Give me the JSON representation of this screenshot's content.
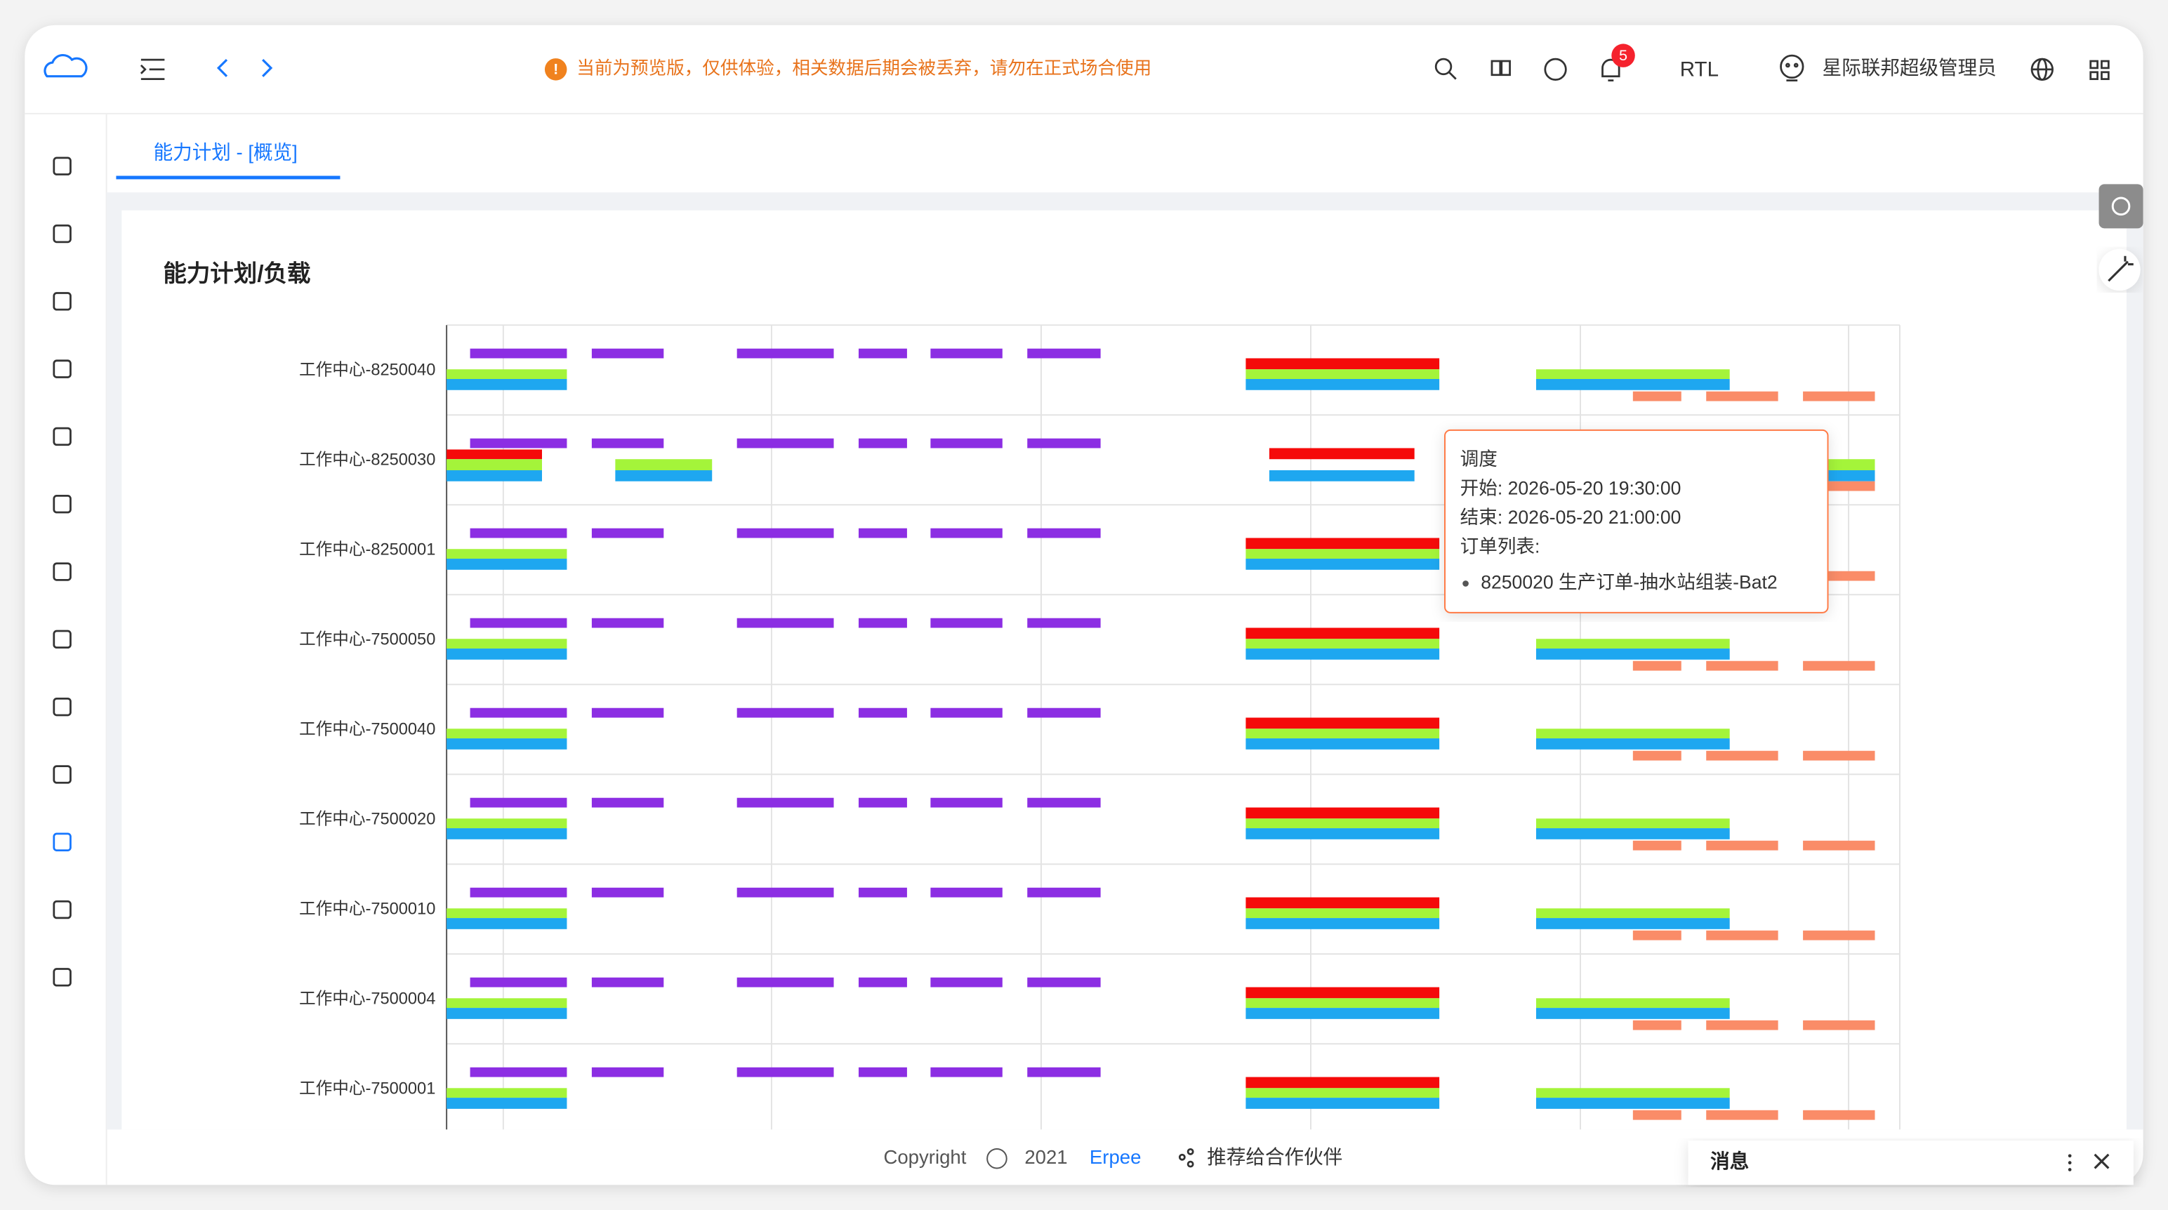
{
  "header": {
    "notice": "当前为预览版，仅供体验，相关数据后期会被丢弃，请勿在正式场合使用",
    "badge": "5",
    "rtl": "RTL",
    "user": "星际联邦超级管理员"
  },
  "tab": "能力计划 - [概览]",
  "chart": {
    "title": "能力计划/负载",
    "rows": [
      "工作中心-8250040",
      "工作中心-8250030",
      "工作中心-8250001",
      "工作中心-7500050",
      "工作中心-7500040",
      "工作中心-7500020",
      "工作中心-7500010",
      "工作中心-7500004",
      "工作中心-7500001"
    ]
  },
  "tooltip": {
    "title": "调度",
    "start": "开始: 2026-05-20 19:30:00",
    "end": "结束: 2026-05-20 21:00:00",
    "list_label": "订单列表:",
    "items": [
      "8250020 生产订单-抽水站组装-Bat2"
    ]
  },
  "footer": {
    "copyright": "Copyright",
    "symbol": "©",
    "year": "2021",
    "brand": "Erpee",
    "share": "推荐给合作伙伴"
  },
  "messages": {
    "title": "消息"
  }
}
